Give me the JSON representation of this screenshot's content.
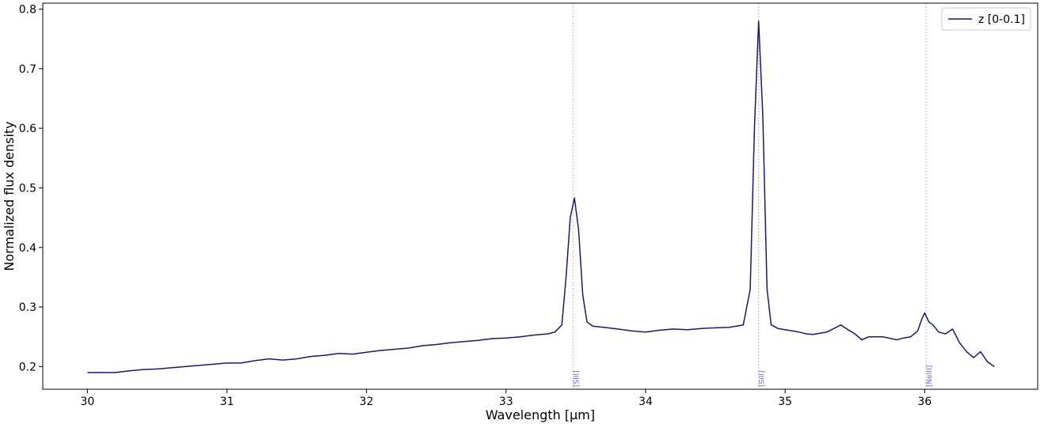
{
  "chart_data": {
    "type": "line",
    "title": "",
    "xlabel": "Wavelength [μm]",
    "ylabel": "Normalized flux density",
    "xlim": [
      29.68,
      36.81
    ],
    "ylim": [
      0.162,
      0.81
    ],
    "xticks": [
      30,
      31,
      32,
      33,
      34,
      35,
      36
    ],
    "xtick_labels": [
      "30",
      "31",
      "32",
      "33",
      "34",
      "35",
      "36"
    ],
    "yticks": [
      0.2,
      0.3,
      0.4,
      0.5,
      0.6,
      0.7,
      0.8
    ],
    "ytick_labels": [
      "0.2",
      "0.3",
      "0.4",
      "0.5",
      "0.6",
      "0.7",
      "0.8"
    ],
    "grid": false,
    "legend_position": "top-right",
    "series": [
      {
        "name": "z [0-0.1]",
        "color": "#191970",
        "x": [
          30.0,
          30.1,
          30.2,
          30.3,
          30.4,
          30.5,
          30.6,
          30.7,
          30.8,
          30.9,
          31.0,
          31.1,
          31.2,
          31.3,
          31.4,
          31.5,
          31.6,
          31.7,
          31.8,
          31.9,
          32.0,
          32.1,
          32.2,
          32.3,
          32.4,
          32.5,
          32.6,
          32.7,
          32.8,
          32.9,
          33.0,
          33.1,
          33.2,
          33.3,
          33.35,
          33.4,
          33.43,
          33.46,
          33.49,
          33.52,
          33.55,
          33.58,
          33.62,
          33.7,
          33.8,
          33.9,
          34.0,
          34.1,
          34.2,
          34.3,
          34.4,
          34.5,
          34.6,
          34.7,
          34.75,
          34.78,
          34.81,
          34.84,
          34.87,
          34.9,
          34.95,
          35.0,
          35.05,
          35.1,
          35.15,
          35.2,
          35.3,
          35.4,
          35.45,
          35.5,
          35.55,
          35.6,
          35.7,
          35.8,
          35.85,
          35.9,
          35.95,
          35.98,
          36.0,
          36.03,
          36.06,
          36.1,
          36.15,
          36.2,
          36.25,
          36.3,
          36.35,
          36.4,
          36.45,
          36.5
        ],
        "y": [
          0.19,
          0.19,
          0.19,
          0.193,
          0.195,
          0.196,
          0.198,
          0.2,
          0.202,
          0.204,
          0.206,
          0.206,
          0.21,
          0.213,
          0.211,
          0.213,
          0.217,
          0.219,
          0.222,
          0.221,
          0.224,
          0.227,
          0.229,
          0.231,
          0.235,
          0.237,
          0.24,
          0.242,
          0.244,
          0.247,
          0.248,
          0.25,
          0.253,
          0.255,
          0.258,
          0.27,
          0.35,
          0.45,
          0.483,
          0.43,
          0.32,
          0.275,
          0.268,
          0.266,
          0.263,
          0.26,
          0.258,
          0.261,
          0.263,
          0.262,
          0.264,
          0.265,
          0.266,
          0.27,
          0.33,
          0.6,
          0.78,
          0.62,
          0.33,
          0.27,
          0.264,
          0.262,
          0.26,
          0.258,
          0.255,
          0.254,
          0.258,
          0.27,
          0.262,
          0.255,
          0.245,
          0.25,
          0.25,
          0.245,
          0.248,
          0.25,
          0.26,
          0.28,
          0.29,
          0.275,
          0.27,
          0.258,
          0.255,
          0.263,
          0.24,
          0.225,
          0.215,
          0.225,
          0.208,
          0.2
        ]
      }
    ],
    "vlines": [
      {
        "x": 33.48,
        "label": "[SIII]"
      },
      {
        "x": 34.81,
        "label": "[SiII]"
      },
      {
        "x": 36.01,
        "label": "[NeIII]"
      }
    ],
    "vline_color": "#b3b3f5",
    "vline_label_color": "#6a6ae8"
  }
}
